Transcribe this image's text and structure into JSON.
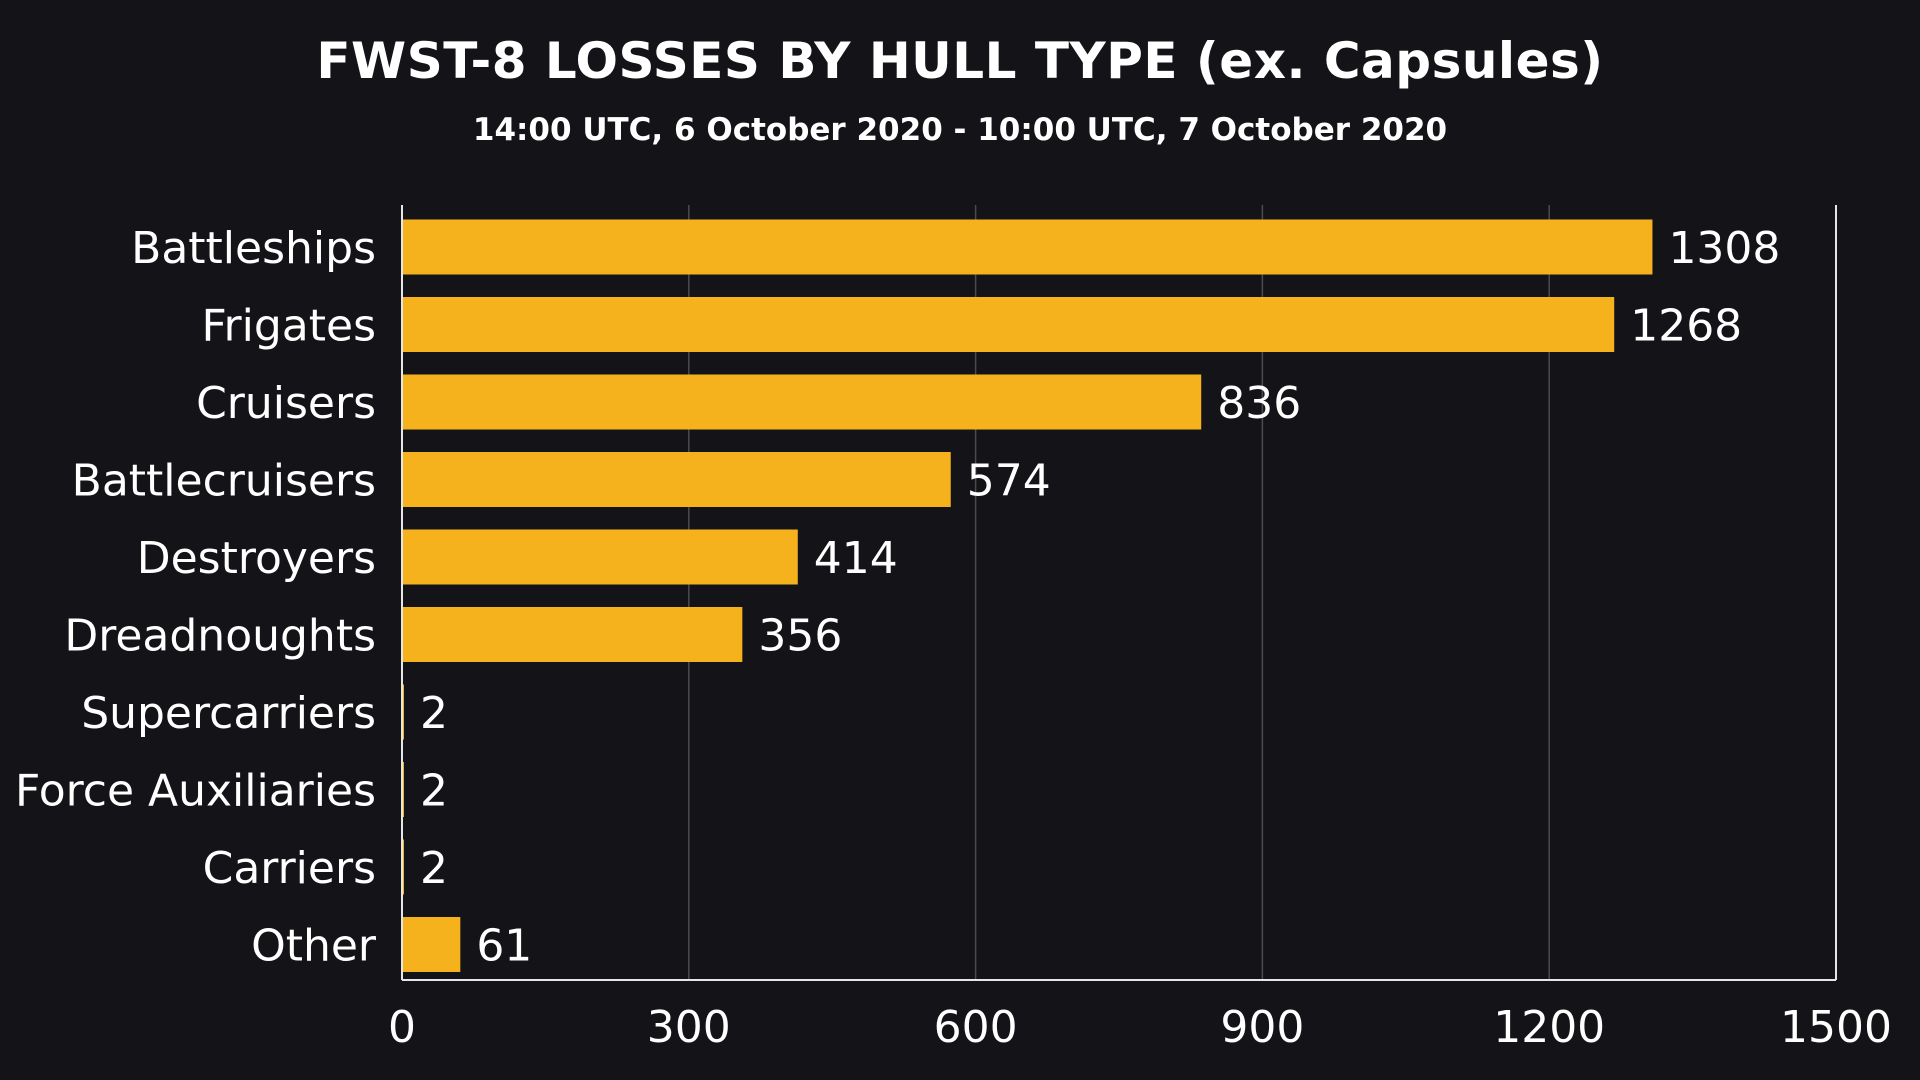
{
  "colors": {
    "background": "#141418",
    "bar": "#f5b21d",
    "grid": "#4a4a52",
    "axis": "#e6e6e6",
    "text": "#ffffff"
  },
  "chart_data": {
    "type": "bar",
    "orientation": "horizontal",
    "title": "FWST-8 LOSSES BY HULL TYPE (ex. Capsules)",
    "subtitle": "14:00 UTC, 6 October 2020 - 10:00 UTC, 7 October 2020",
    "xlabel": "",
    "ylabel": "",
    "categories": [
      "Battleships",
      "Frigates",
      "Cruisers",
      "Battlecruisers",
      "Destroyers",
      "Dreadnoughts",
      "Supercarriers",
      "Force Auxiliaries",
      "Carriers",
      "Other"
    ],
    "values": [
      1308,
      1268,
      836,
      574,
      414,
      356,
      2,
      2,
      2,
      61
    ],
    "xlim": [
      0,
      1500
    ],
    "xticks": [
      0,
      300,
      600,
      900,
      1200,
      1500
    ],
    "grid": "vertical",
    "legend": "none",
    "data_labels": true
  }
}
